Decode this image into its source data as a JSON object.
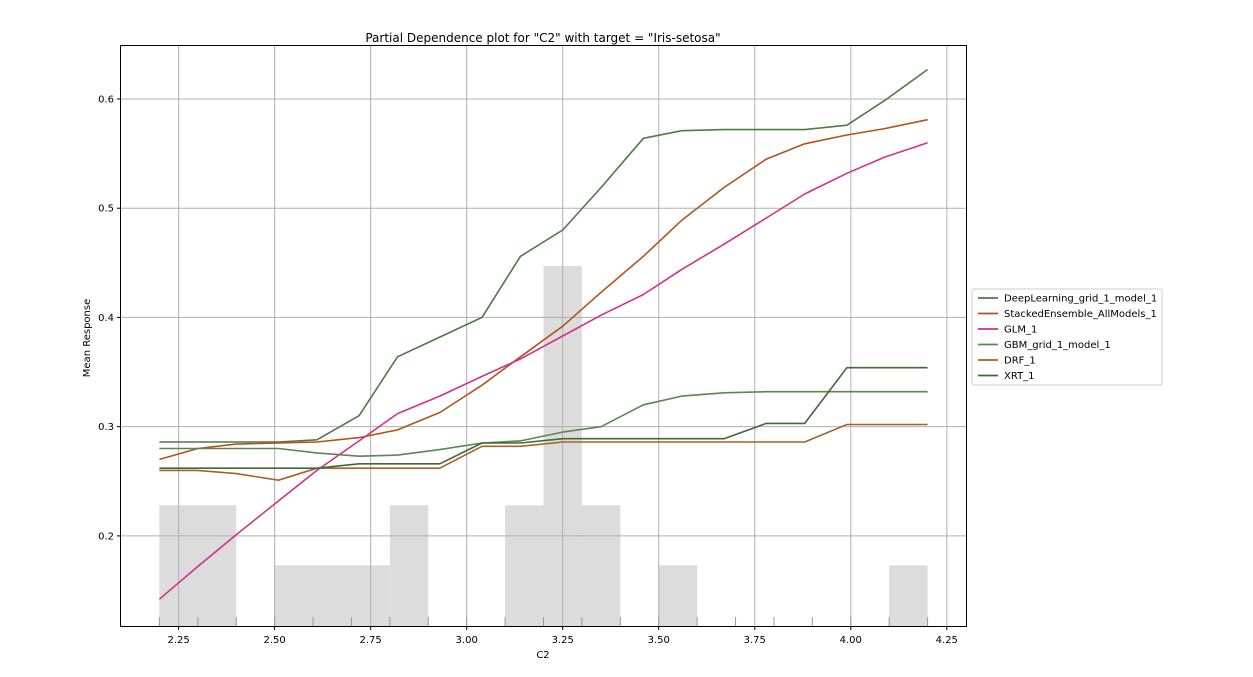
{
  "chart_data": {
    "type": "line",
    "title": "Partial Dependence plot for \"C2\" with target = \"Iris-setosa\"",
    "xlabel": "C2",
    "ylabel": "Mean Response",
    "xlim": [
      2.1,
      4.3
    ],
    "ylim": [
      0.1175,
      0.6485
    ],
    "grid": true,
    "legend_position": "outside-right",
    "xticks": [
      {
        "value": 2.25,
        "label": "2.25"
      },
      {
        "value": 2.5,
        "label": "2.50"
      },
      {
        "value": 2.75,
        "label": "2.75"
      },
      {
        "value": 3.0,
        "label": "3.00"
      },
      {
        "value": 3.25,
        "label": "3.25"
      },
      {
        "value": 3.5,
        "label": "3.50"
      },
      {
        "value": 3.75,
        "label": "3.75"
      },
      {
        "value": 4.0,
        "label": "4.00"
      },
      {
        "value": 4.25,
        "label": "4.25"
      }
    ],
    "yticks": [
      {
        "value": 0.2,
        "label": "0.2"
      },
      {
        "value": 0.3,
        "label": "0.3"
      },
      {
        "value": 0.4,
        "label": "0.4"
      },
      {
        "value": 0.5,
        "label": "0.5"
      },
      {
        "value": 0.6,
        "label": "0.6"
      }
    ],
    "x": [
      2.2,
      2.3,
      2.4,
      2.51,
      2.61,
      2.72,
      2.82,
      2.93,
      3.04,
      3.14,
      3.25,
      3.35,
      3.46,
      3.56,
      3.67,
      3.78,
      3.88,
      3.99,
      4.09,
      4.2
    ],
    "histogram": {
      "color": "#dcdcdc",
      "bins": [
        {
          "x0": 2.2,
          "x1": 2.4,
          "top": 0.228
        },
        {
          "x0": 2.5,
          "x1": 2.8,
          "top": 0.173
        },
        {
          "x0": 2.8,
          "x1": 2.9,
          "top": 0.228
        },
        {
          "x0": 3.1,
          "x1": 3.2,
          "top": 0.228
        },
        {
          "x0": 3.2,
          "x1": 3.3,
          "top": 0.447
        },
        {
          "x0": 3.3,
          "x1": 3.4,
          "top": 0.228
        },
        {
          "x0": 3.5,
          "x1": 3.6,
          "top": 0.173
        },
        {
          "x0": 4.1,
          "x1": 4.2,
          "top": 0.173
        }
      ]
    },
    "rug": [
      2.2,
      2.3,
      2.4,
      2.5,
      2.6,
      2.7,
      2.8,
      2.9,
      3.0,
      3.1,
      3.2,
      3.3,
      3.4,
      3.5,
      3.6,
      3.7,
      3.8,
      3.9,
      4.0,
      4.1,
      4.2
    ],
    "series": [
      {
        "name": "DeepLearning_grid_1_model_1",
        "color": "#4e7a43",
        "values": [
          0.286,
          0.286,
          0.286,
          0.286,
          0.288,
          0.31,
          0.364,
          0.382,
          0.4,
          0.456,
          0.48,
          0.519,
          0.564,
          0.571,
          0.572,
          0.572,
          0.572,
          0.576,
          0.599,
          0.627
        ]
      },
      {
        "name": "StackedEnsemble_AllModels_1",
        "color": "#b1541c",
        "values": [
          0.27,
          0.28,
          0.284,
          0.285,
          0.286,
          0.29,
          0.297,
          0.313,
          0.338,
          0.364,
          0.392,
          0.423,
          0.456,
          0.489,
          0.519,
          0.545,
          0.559,
          0.567,
          0.573,
          0.581
        ]
      },
      {
        "name": "GLM_1",
        "color": "#d0318c",
        "values": [
          0.142,
          0.172,
          0.201,
          0.232,
          0.26,
          0.287,
          0.312,
          0.328,
          0.346,
          0.362,
          0.383,
          0.402,
          0.421,
          0.444,
          0.467,
          0.491,
          0.513,
          0.532,
          0.547,
          0.56
        ]
      },
      {
        "name": "GBM_grid_1_model_1",
        "color": "#5a8750",
        "values": [
          0.28,
          0.28,
          0.28,
          0.28,
          0.276,
          0.273,
          0.274,
          0.279,
          0.285,
          0.287,
          0.295,
          0.3,
          0.32,
          0.328,
          0.331,
          0.332,
          0.332,
          0.332,
          0.332,
          0.332
        ]
      },
      {
        "name": "DRF_1",
        "color": "#a8612a",
        "values": [
          0.26,
          0.26,
          0.257,
          0.251,
          0.262,
          0.262,
          0.262,
          0.262,
          0.282,
          0.282,
          0.286,
          0.286,
          0.286,
          0.286,
          0.286,
          0.286,
          0.286,
          0.302,
          0.302,
          0.302
        ]
      },
      {
        "name": "XRT_1",
        "color": "#3f6a38",
        "values": [
          0.262,
          0.262,
          0.262,
          0.262,
          0.262,
          0.266,
          0.266,
          0.266,
          0.285,
          0.285,
          0.289,
          0.289,
          0.289,
          0.289,
          0.289,
          0.303,
          0.303,
          0.354,
          0.354,
          0.354
        ]
      }
    ]
  }
}
